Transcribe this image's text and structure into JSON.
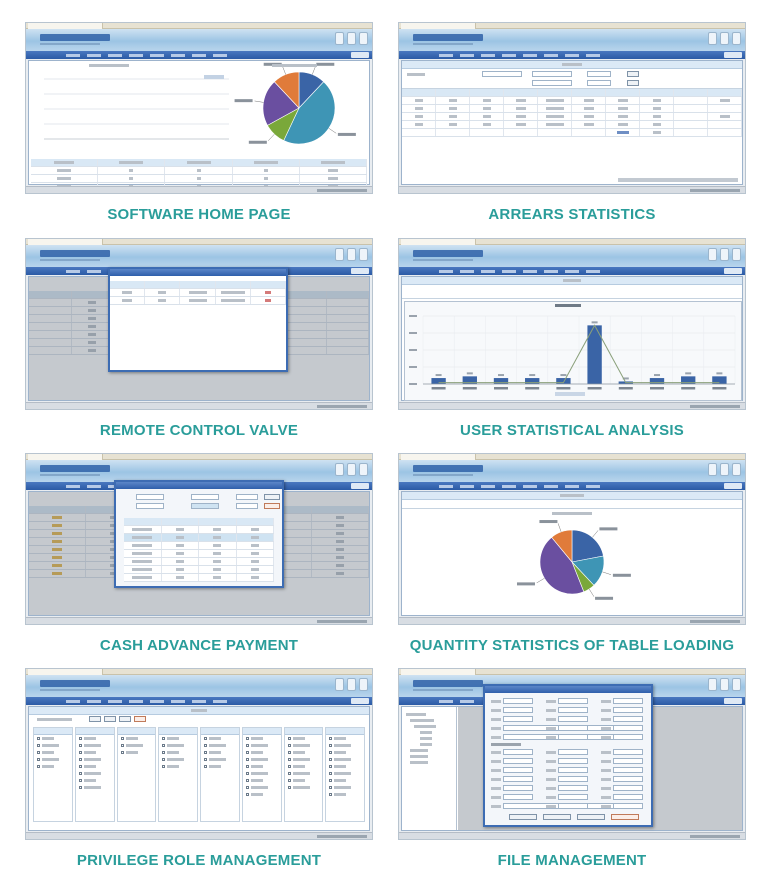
{
  "panels": [
    {
      "id": "home",
      "caption": "SOFTWARE HOME PAGE"
    },
    {
      "id": "arrears",
      "caption": "ARREARS STATISTICS"
    },
    {
      "id": "valve",
      "caption": "REMOTE CONTROL VALVE"
    },
    {
      "id": "analysis",
      "caption": "USER STATISTICAL ANALYSIS"
    },
    {
      "id": "cash",
      "caption": "CASH ADVANCE PAYMENT"
    },
    {
      "id": "loading",
      "caption": "QUANTITY STATISTICS OF TABLE LOADING"
    },
    {
      "id": "privilege",
      "caption": "PRIVILEGE ROLE MANAGEMENT"
    },
    {
      "id": "file",
      "caption": "FILE MANAGEMENT"
    }
  ],
  "colors": {
    "caption": "#2a9d9a",
    "nav": "#2b5aa5",
    "bar": "#3a64a6",
    "line": "#8aa07a",
    "pie": [
      "#3a64a6",
      "#3e95b5",
      "#7aa83a",
      "#6a4fa0",
      "#e07b3a"
    ]
  },
  "chart_data": [
    {
      "type": "pie",
      "panel": "home",
      "slices": [
        {
          "label": "A",
          "value": 12
        },
        {
          "label": "B",
          "value": 45
        },
        {
          "label": "C",
          "value": 10
        },
        {
          "label": "D",
          "value": 21
        },
        {
          "label": "E",
          "value": 12
        }
      ]
    },
    {
      "type": "bar",
      "panel": "analysis",
      "categories": [
        "1",
        "2",
        "3",
        "4",
        "5",
        "6",
        "7",
        "8",
        "9",
        "10"
      ],
      "values": [
        35,
        45,
        35,
        35,
        35,
        345,
        15,
        35,
        45,
        45
      ],
      "ylim": [
        0,
        400
      ],
      "line_values": [
        8,
        8,
        8,
        8,
        8,
        345,
        8,
        8,
        8,
        8
      ]
    },
    {
      "type": "pie",
      "panel": "loading",
      "slices": [
        {
          "label": "A",
          "value": 22
        },
        {
          "label": "B",
          "value": 16
        },
        {
          "label": "C",
          "value": 6
        },
        {
          "label": "D",
          "value": 45
        },
        {
          "label": "E",
          "value": 11
        }
      ]
    }
  ]
}
